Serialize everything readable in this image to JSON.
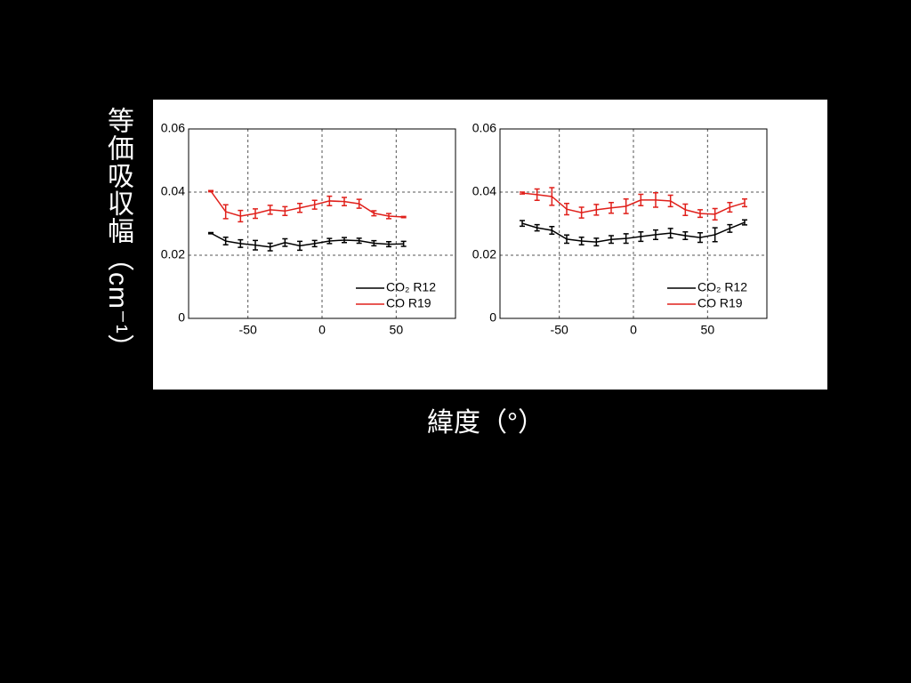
{
  "ylabel": "等価吸収幅（cm⁻¹）",
  "xlabel": "緯度（°）",
  "chart_data": [
    {
      "type": "errorline",
      "xlim": [
        -90,
        90
      ],
      "ylim": [
        0,
        0.06
      ],
      "xticks": [
        -50,
        0,
        50
      ],
      "yticks": [
        0,
        0.02,
        0.04,
        0.06
      ],
      "grid": true,
      "legend": "lower right",
      "x": [
        -75,
        -65,
        -55,
        -45,
        -35,
        -25,
        -15,
        -5,
        5,
        15,
        25,
        35,
        45,
        55
      ],
      "series": [
        {
          "name": "CO₂ R12",
          "color": "#000000",
          "values": [
            0.027,
            0.0245,
            0.0237,
            0.0232,
            0.0226,
            0.024,
            0.023,
            0.0237,
            0.0245,
            0.0248,
            0.0246,
            0.0238,
            0.0235,
            0.0236
          ],
          "errors": [
            0.0002,
            0.0012,
            0.0012,
            0.0015,
            0.0012,
            0.0012,
            0.0014,
            0.001,
            0.0008,
            0.0008,
            0.0008,
            0.0008,
            0.0008,
            0.0008
          ]
        },
        {
          "name": "CO R19",
          "color": "#e0201b",
          "values": [
            0.0403,
            0.0338,
            0.0324,
            0.0332,
            0.0344,
            0.034,
            0.035,
            0.036,
            0.0372,
            0.037,
            0.0363,
            0.0333,
            0.0324,
            0.0321
          ],
          "errors": [
            0.0002,
            0.0022,
            0.0018,
            0.0015,
            0.0014,
            0.0014,
            0.0014,
            0.0014,
            0.0015,
            0.0013,
            0.0014,
            0.0008,
            0.0008,
            0.0002
          ]
        }
      ]
    },
    {
      "type": "errorline",
      "xlim": [
        -90,
        90
      ],
      "ylim": [
        0,
        0.06
      ],
      "xticks": [
        -50,
        0,
        50
      ],
      "yticks": [
        0,
        0.02,
        0.04,
        0.06
      ],
      "grid": true,
      "legend": "lower right",
      "x": [
        -75,
        -65,
        -55,
        -45,
        -35,
        -25,
        -15,
        -5,
        5,
        15,
        25,
        35,
        45,
        55,
        65,
        75
      ],
      "series": [
        {
          "name": "CO₂ R12",
          "color": "#000000",
          "values": [
            0.0301,
            0.0287,
            0.0279,
            0.0251,
            0.0245,
            0.0242,
            0.025,
            0.0253,
            0.0259,
            0.0265,
            0.027,
            0.0262,
            0.0256,
            0.0265,
            0.0285,
            0.0304
          ],
          "errors": [
            0.0009,
            0.001,
            0.0012,
            0.0013,
            0.0012,
            0.0012,
            0.0012,
            0.0015,
            0.0015,
            0.0015,
            0.0015,
            0.0012,
            0.0015,
            0.0022,
            0.0012,
            0.0008
          ]
        },
        {
          "name": "CO R19",
          "color": "#e0201b",
          "values": [
            0.0397,
            0.0392,
            0.0386,
            0.0346,
            0.0335,
            0.0344,
            0.035,
            0.0355,
            0.0375,
            0.0375,
            0.0372,
            0.0344,
            0.0332,
            0.033,
            0.0352,
            0.0366
          ],
          "errors": [
            0.0003,
            0.0018,
            0.0028,
            0.0018,
            0.0017,
            0.0017,
            0.0017,
            0.0023,
            0.0018,
            0.0023,
            0.0018,
            0.0018,
            0.0012,
            0.0018,
            0.0015,
            0.0012
          ]
        }
      ]
    }
  ]
}
